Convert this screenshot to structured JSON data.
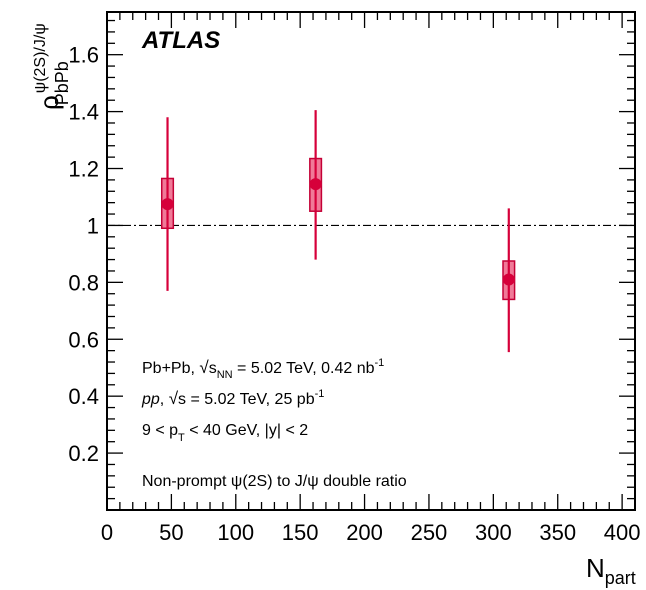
{
  "chart_data": {
    "type": "scatter",
    "experiment": "ATLAS",
    "ylabel": {
      "symbol": "ρ",
      "superscript": "ψ(2S)/J/ψ",
      "subscript": "PbPb"
    },
    "xlabel": {
      "symbol": "N",
      "subscript": "part"
    },
    "xlim": [
      0,
      410
    ],
    "ylim": [
      0,
      1.75
    ],
    "x_ticks": [
      "0",
      "50",
      "100",
      "150",
      "200",
      "250",
      "300",
      "350",
      "400"
    ],
    "y_ticks": [
      "0.2",
      "0.4",
      "0.6",
      "0.8",
      "1",
      "1.2",
      "1.4",
      "1.6"
    ],
    "reference_line": 1.0,
    "points": [
      {
        "x": 47,
        "y": 1.075,
        "stat_err_low": 0.305,
        "stat_err_high": 0.305,
        "sys_low": 0.085,
        "sys_high": 0.09,
        "sys_half_width": 4.5
      },
      {
        "x": 162,
        "y": 1.145,
        "stat_err_low": 0.265,
        "stat_err_high": 0.26,
        "sys_low": 0.095,
        "sys_high": 0.09,
        "sys_half_width": 4.5
      },
      {
        "x": 312,
        "y": 0.81,
        "stat_err_low": 0.255,
        "stat_err_high": 0.25,
        "sys_low": 0.07,
        "sys_high": 0.065,
        "sys_half_width": 4.5
      }
    ],
    "colors": {
      "marker": "#d6003a",
      "box_fill": "#f07a98",
      "box_stroke": "#c40036"
    },
    "annotations": {
      "line1": {
        "a": "Pb+Pb, ",
        "sqrt": "s",
        "sqrt_sub": "NN",
        "b": " = 5.02 TeV, 0.42 nb",
        "sup": "-1"
      },
      "line2": {
        "italic": "pp",
        "a": ", ",
        "sqrt": "s",
        "b": " = 5.02 TeV, 25 pb",
        "sup": "-1"
      },
      "line3": {
        "a": "9 < p",
        "sub": "T",
        "b": " < 40 GeV, |y| < 2"
      },
      "line4": "Non-prompt ψ(2S) to J/ψ double ratio"
    }
  }
}
